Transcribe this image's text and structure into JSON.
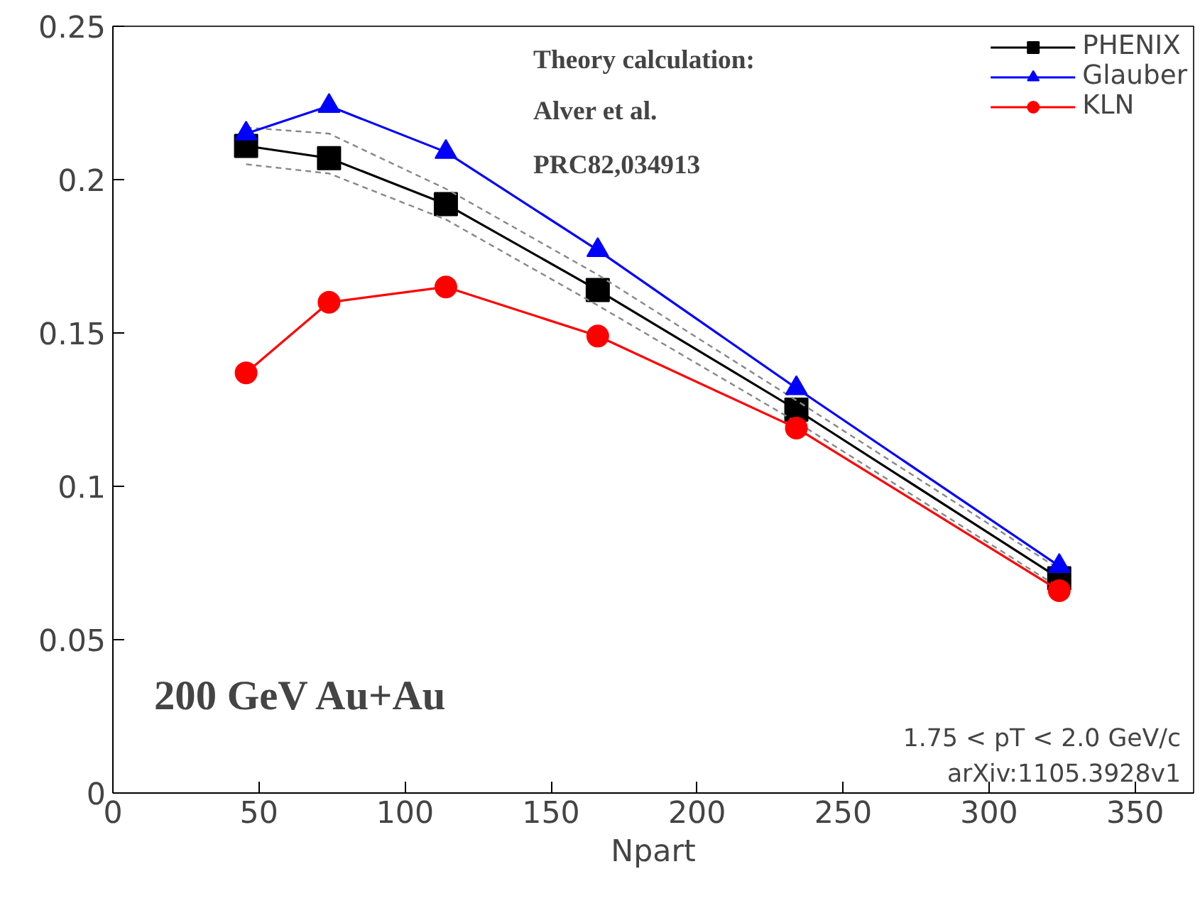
{
  "chart_data": {
    "type": "line",
    "xlabel": "Npart",
    "x": [
      45.6,
      74,
      114,
      166,
      234,
      324
    ],
    "series": [
      {
        "name": "PHENIX",
        "color": "#000000",
        "marker": "square",
        "values": [
          0.211,
          0.207,
          0.192,
          0.164,
          0.125,
          0.07
        ]
      },
      {
        "color": "#888888",
        "line_style": "dashed",
        "values": [
          0.217,
          0.215,
          0.197,
          0.169,
          0.128,
          0.073
        ]
      },
      {
        "color": "#888888",
        "line_style": "dashed",
        "values": [
          0.205,
          0.202,
          0.187,
          0.159,
          0.121,
          0.067
        ]
      },
      {
        "name": "Glauber",
        "color": "#0000ff",
        "marker": "triangle",
        "values": [
          0.215,
          0.224,
          0.209,
          0.177,
          0.132,
          0.074
        ]
      },
      {
        "name": "KLN",
        "color": "#ff0000",
        "marker": "circle",
        "values": [
          0.137,
          0.16,
          0.165,
          0.149,
          0.119,
          0.066
        ]
      }
    ],
    "xlim": [
      0,
      370
    ],
    "ylim": [
      0,
      0.25
    ],
    "xticks": [
      0,
      50,
      100,
      150,
      200,
      250,
      300,
      350
    ],
    "yticks": [
      0,
      0.05,
      0.1,
      0.15,
      0.2,
      0.25
    ],
    "grid": false,
    "legend": "top right",
    "annotations": [
      "Theory calculation:",
      "Alver et al.",
      "PRC82,034913",
      "200 GeV Au+Au",
      "1.75 < pT < 2.0 GeV/c",
      "arXiv:1105.3928v1"
    ]
  }
}
